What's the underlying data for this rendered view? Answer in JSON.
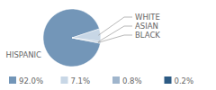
{
  "chart_data": {
    "type": "pie",
    "categories": [
      "HISPANIC",
      "WHITE",
      "ASIAN",
      "BLACK"
    ],
    "values": [
      92.0,
      7.1,
      0.8,
      0.2
    ],
    "value_labels": [
      "92.0%",
      "7.1%",
      "0.8%",
      "0.2%"
    ],
    "colors": [
      "#7396b8",
      "#c8d7e6",
      "#9fb5cc",
      "#2d5b84"
    ],
    "legend": "bottom"
  }
}
